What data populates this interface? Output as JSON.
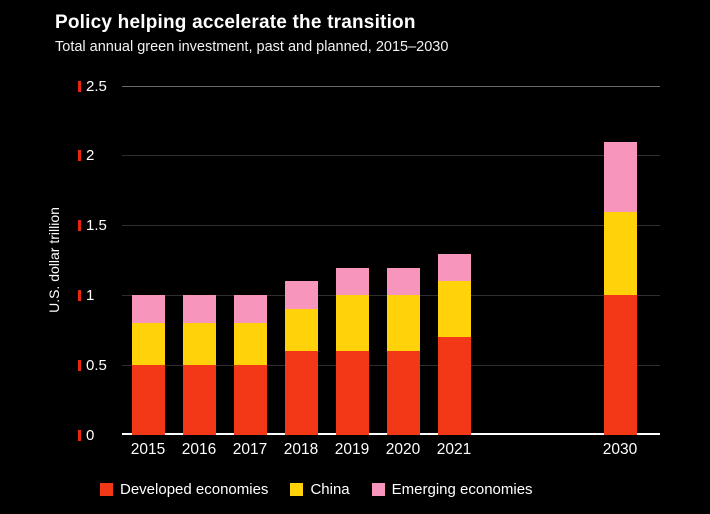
{
  "title": "Policy helping accelerate the transition",
  "subtitle": "Total annual green investment, past and planned, 2015–2030",
  "chart_data": {
    "type": "bar",
    "stacked": true,
    "title": "Policy helping accelerate the transition",
    "subtitle": "Total annual green investment, past and planned, 2015–2030",
    "categories": [
      "2015",
      "2016",
      "2017",
      "2018",
      "2019",
      "2020",
      "2021",
      "2030"
    ],
    "series": [
      {
        "name": "Developed economies",
        "color": "#f23817",
        "values": [
          0.5,
          0.5,
          0.5,
          0.6,
          0.6,
          0.6,
          0.7,
          1.0
        ]
      },
      {
        "name": "China",
        "color": "#ffd20a",
        "values": [
          0.3,
          0.3,
          0.3,
          0.3,
          0.4,
          0.4,
          0.4,
          0.6
        ]
      },
      {
        "name": "Emerging economies",
        "color": "#f795bd",
        "values": [
          0.2,
          0.2,
          0.2,
          0.2,
          0.2,
          0.2,
          0.2,
          0.5
        ]
      }
    ],
    "xlabel": "",
    "ylabel": "U.S. dollar trillion",
    "ylim": [
      0,
      2.5
    ],
    "yticks": [
      0,
      0.5,
      1,
      1.5,
      2,
      2.5
    ],
    "ytick_labels": [
      "0",
      "0.5",
      "1",
      "1.5",
      "2",
      "2.5"
    ],
    "grid": "horizontal",
    "legend_position": "bottom"
  },
  "colors": {
    "background": "#000000",
    "text": "#ffffff",
    "grid": "#2e2e2e",
    "grid_top": "#6a6a6a",
    "baseline": "#ffffff",
    "axis_tick_red": "#e8250f"
  }
}
